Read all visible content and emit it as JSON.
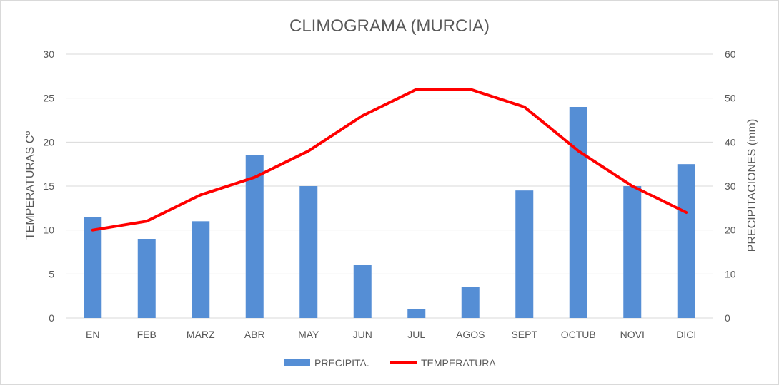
{
  "chart_data": {
    "type": "bar",
    "title": "CLIMOGRAMA (MURCIA)",
    "categories": [
      "EN",
      "FEB",
      "MARZ",
      "ABR",
      "MAY",
      "JUN",
      "JUL",
      "AGOS",
      "SEPT",
      "OCTUB",
      "NOVI",
      "DICI"
    ],
    "series": [
      {
        "name": "PRECIPITA.",
        "type": "bar",
        "axis": "right",
        "color": "#558ED5",
        "values": [
          23,
          18,
          22,
          37,
          30,
          12,
          2,
          7,
          29,
          48,
          30,
          35
        ]
      },
      {
        "name": "TEMPERATURA",
        "type": "line",
        "axis": "left",
        "color": "#FF0000",
        "values": [
          10,
          11,
          14,
          16,
          19,
          23,
          26,
          26,
          24,
          19,
          15,
          12
        ]
      }
    ],
    "ylabel_left": "TEMPERATURAS Cº",
    "ylabel_right": "PRECIPITACIONES (mm)",
    "ylim_left": [
      0,
      30
    ],
    "ylim_right": [
      0,
      60
    ],
    "yticks_left": [
      "0",
      "5",
      "10",
      "15",
      "20",
      "25",
      "30"
    ],
    "yticks_right": [
      "0",
      "10",
      "20",
      "30",
      "40",
      "50",
      "60"
    ],
    "grid": true,
    "legend": "bottom"
  }
}
